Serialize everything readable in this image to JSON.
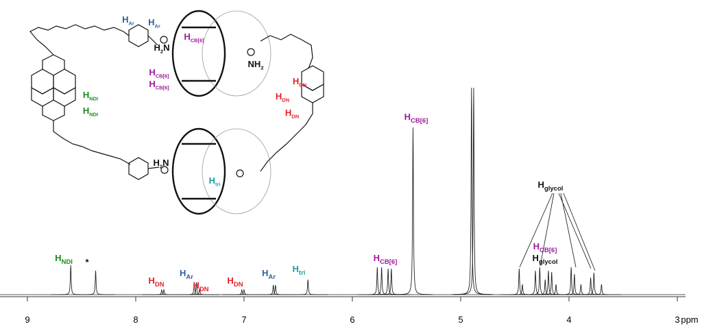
{
  "chart_data": {
    "type": "spectrum",
    "x_label": "ppm",
    "xlim": [
      9.253,
      2.924
    ],
    "xticks": [
      9,
      8,
      7,
      6,
      5,
      4,
      3
    ],
    "ylim": [
      0,
      310
    ],
    "color": "#222222",
    "peaks": {
      "ppm": [
        8.6,
        8.37,
        7.76,
        7.74,
        7.46,
        7.44,
        7.41,
        7.02,
        7.0,
        6.73,
        6.71,
        6.41,
        5.77,
        5.73,
        5.67,
        5.64,
        5.44,
        4.9,
        4.88,
        4.46,
        4.43,
        4.31,
        4.27,
        4.22,
        4.19,
        4.16,
        4.12,
        3.98,
        3.95,
        3.89,
        3.8,
        3.77,
        3.7
      ],
      "intensity": [
        43,
        35,
        7,
        7,
        17,
        18,
        8,
        7,
        7,
        14,
        14,
        22,
        40,
        40,
        38,
        38,
        244,
        302,
        302,
        38,
        15,
        35,
        40,
        22,
        35,
        33,
        15,
        40,
        30,
        15,
        25,
        32,
        15
      ]
    },
    "annotations": [
      {
        "text": "H",
        "sub": "NDI",
        "color": "#1a8c1a"
      },
      {
        "text": "*",
        "color": "#111111"
      },
      {
        "text": "H",
        "sub": "DN",
        "color": "#e8202a"
      },
      {
        "text": "H",
        "sub": "Ar",
        "color": "#2f5f9e"
      },
      {
        "text": "H",
        "sub": "DN",
        "color": "#e8202a"
      },
      {
        "text": "H",
        "sub": "DN",
        "color": "#e8202a"
      },
      {
        "text": "H",
        "sub": "Ar",
        "color": "#2f5f9e"
      },
      {
        "text": "H",
        "sub": "tri",
        "color": "#1aa0a0"
      },
      {
        "text": "H",
        "sub": "CB[6]",
        "color": "#9c1a9c"
      },
      {
        "text": "H",
        "sub": "CB[6]",
        "color": "#9c1a9c"
      },
      {
        "text": "H",
        "sub": "glycol",
        "color": "#111111"
      },
      {
        "text": "H",
        "sub": "CB[6]",
        "color": "#9c1a9c"
      },
      {
        "text": "H",
        "sub": "glycol",
        "color": "#111111"
      }
    ],
    "structure_labels": [
      {
        "text": "H",
        "sub": "Ar",
        "color": "#2f5f9e"
      },
      {
        "text": "H",
        "sub": "Ar",
        "color": "#2f5f9e"
      },
      {
        "text": "H",
        "sub": "NDI",
        "color": "#1a8c1a"
      },
      {
        "text": "H",
        "sub": "NDI",
        "color": "#1a8c1a"
      },
      {
        "text": "H",
        "sub": "CB[6]",
        "color": "#9c1a9c"
      },
      {
        "text": "H",
        "sub": "CB[6]",
        "color": "#9c1a9c"
      },
      {
        "text": "H",
        "sub": "CB[6]",
        "color": "#9c1a9c"
      },
      {
        "text": "H",
        "sub": "DN",
        "color": "#e8202a"
      },
      {
        "text": "H",
        "sub": "DN",
        "color": "#e8202a"
      },
      {
        "text": "H",
        "sub": "DN",
        "color": "#e8202a"
      },
      {
        "text": "H",
        "sub": "tri",
        "color": "#1aa0a0"
      },
      {
        "text": "H",
        "sub": "2",
        "pre": "N",
        "color": "#111111"
      },
      {
        "text": "NH",
        "sub": "2",
        "color": "#111111"
      },
      {
        "text": "H",
        "sub": "2",
        "pre": "N",
        "color": "#111111"
      }
    ]
  }
}
